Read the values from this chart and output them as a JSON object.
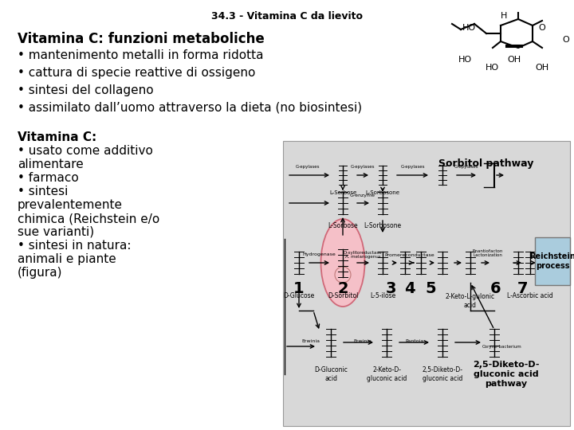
{
  "background_color": "#ffffff",
  "slide_title": "34.3 - Vitamina C da lievito",
  "slide_title_fontsize": 9,
  "top_lines": [
    "Vitamina C: funzioni metaboliche",
    "• mantenimento metalli in forma ridotta",
    "• cattura di specie reattive di ossigeno",
    "• sintesi del collageno",
    "• assimilato dall’uomo attraverso la dieta (no biosintesi)"
  ],
  "bottom_left_lines": [
    "Vitamina C:",
    "• usato come additivo",
    "alimentare",
    "• farmaco",
    "• sintesi",
    "prevalentemente",
    "chimica (Reichstein e/o",
    "sue varianti)",
    "• sintesi in natura:",
    "animali e piante",
    "(figura)"
  ]
}
